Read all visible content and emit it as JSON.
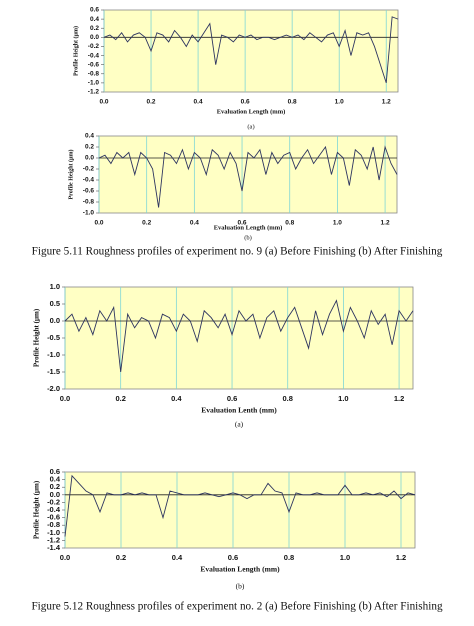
{
  "chart_data": [
    {
      "type": "line",
      "y_label": "Profile Height (µm)",
      "x_label": "Evaluation Length (mm)",
      "sublabel": "(a)",
      "grid": "x",
      "background": "#ffffc4",
      "color": "#2e3560",
      "xlim": [
        0,
        1.25
      ],
      "xticks": [
        {
          "value": 0,
          "label": "0.0"
        },
        0.2,
        0.4,
        0.6,
        0.8,
        {
          "value": 1,
          "label": "1.0"
        },
        1.2
      ],
      "ylim": [
        -1.2,
        0.6
      ],
      "yticks": [
        0.6,
        0.4,
        0.2,
        {
          "value": 0,
          "label": "0.0"
        },
        -0.2,
        -0.4,
        -0.6,
        -0.8,
        {
          "value": -1,
          "label": "-1.0"
        },
        -1.2
      ],
      "x": [
        0,
        0.025,
        0.05,
        0.075,
        0.1,
        0.125,
        0.15,
        0.175,
        0.2,
        0.225,
        0.25,
        0.275,
        0.3,
        0.325,
        0.35,
        0.375,
        0.4,
        0.425,
        0.45,
        0.475,
        0.5,
        0.525,
        0.55,
        0.575,
        0.6,
        0.625,
        0.65,
        0.675,
        0.7,
        0.725,
        0.75,
        0.775,
        0.8,
        0.825,
        0.85,
        0.875,
        0.9,
        0.925,
        0.95,
        0.975,
        1,
        1.025,
        1.05,
        1.075,
        1.1,
        1.125,
        1.15,
        1.175,
        1.2,
        1.225,
        1.25
      ],
      "values": [
        0.0,
        0.05,
        -0.05,
        0.1,
        -0.1,
        0.05,
        0.1,
        0.0,
        -0.3,
        0.1,
        0.05,
        -0.1,
        0.15,
        0.0,
        -0.2,
        0.05,
        -0.1,
        0.1,
        0.3,
        -0.6,
        0.05,
        0.0,
        -0.1,
        0.05,
        0.0,
        0.05,
        -0.05,
        0.0,
        0.0,
        -0.05,
        0.0,
        0.05,
        0.0,
        0.05,
        -0.05,
        0.1,
        0.0,
        -0.1,
        0.05,
        0.1,
        -0.2,
        0.15,
        -0.4,
        0.1,
        0.05,
        0.1,
        -0.2,
        -0.6,
        -1.0,
        0.45,
        0.4
      ]
    },
    {
      "type": "line",
      "y_label": "Profile Height (µm)",
      "x_label": "Evaluation Length (mm)",
      "sublabel": "(b)",
      "grid": "x",
      "background": "#ffffc4",
      "color": "#2e3560",
      "xlim": [
        0,
        1.25
      ],
      "xticks": [
        {
          "value": 0,
          "label": "0.0"
        },
        0.2,
        0.4,
        0.6,
        0.8,
        {
          "value": 1,
          "label": "1.0"
        },
        1.2
      ],
      "ylim": [
        -1.0,
        0.4
      ],
      "yticks": [
        0.4,
        0.2,
        {
          "value": 0,
          "label": "0.0"
        },
        -0.2,
        -0.4,
        -0.6,
        -0.8,
        {
          "value": -1,
          "label": "-1.0"
        }
      ],
      "x": [
        0,
        0.025,
        0.05,
        0.075,
        0.1,
        0.125,
        0.15,
        0.175,
        0.2,
        0.225,
        0.25,
        0.275,
        0.3,
        0.325,
        0.35,
        0.375,
        0.4,
        0.425,
        0.45,
        0.475,
        0.5,
        0.525,
        0.55,
        0.575,
        0.6,
        0.625,
        0.65,
        0.675,
        0.7,
        0.725,
        0.75,
        0.775,
        0.8,
        0.825,
        0.85,
        0.875,
        0.9,
        0.925,
        0.95,
        0.975,
        1,
        1.025,
        1.05,
        1.075,
        1.1,
        1.125,
        1.15,
        1.175,
        1.2,
        1.225,
        1.25
      ],
      "values": [
        0.0,
        0.05,
        -0.1,
        0.1,
        0.0,
        0.1,
        -0.3,
        0.1,
        0.0,
        -0.2,
        -0.9,
        0.1,
        0.05,
        -0.1,
        0.15,
        -0.2,
        0.1,
        0.0,
        -0.3,
        0.15,
        0.05,
        -0.2,
        0.1,
        -0.1,
        -0.6,
        0.1,
        0.0,
        0.15,
        -0.3,
        0.1,
        -0.1,
        0.05,
        0.1,
        -0.2,
        0.0,
        0.15,
        -0.1,
        0.05,
        0.2,
        -0.3,
        0.1,
        0.0,
        -0.5,
        0.15,
        0.05,
        -0.2,
        0.2,
        -0.4,
        0.2,
        -0.1,
        -0.3
      ]
    },
    {
      "type": "line",
      "y_label": "Profile Height (µm)",
      "x_label": "Evaluation Lenth (mm)",
      "sublabel": "(a)",
      "grid": "x",
      "background": "#ffffc4",
      "color": "#2e3560",
      "xlim": [
        0,
        1.25
      ],
      "xticks": [
        {
          "value": 0,
          "label": "0.0"
        },
        0.2,
        0.4,
        0.6,
        0.8,
        {
          "value": 1,
          "label": "1.0"
        },
        1.2
      ],
      "ylim": [
        -2.0,
        1.0
      ],
      "yticks": [
        {
          "value": 1,
          "label": "1.0"
        },
        0.5,
        {
          "value": 0,
          "label": "0.0"
        },
        -0.5,
        {
          "value": -1,
          "label": "-1.0"
        },
        -1.5,
        {
          "value": -2,
          "label": "-2.0"
        }
      ],
      "x": [
        0,
        0.025,
        0.05,
        0.075,
        0.1,
        0.125,
        0.15,
        0.175,
        0.2,
        0.225,
        0.25,
        0.275,
        0.3,
        0.325,
        0.35,
        0.375,
        0.4,
        0.425,
        0.45,
        0.475,
        0.5,
        0.525,
        0.55,
        0.575,
        0.6,
        0.625,
        0.65,
        0.675,
        0.7,
        0.725,
        0.75,
        0.775,
        0.8,
        0.825,
        0.85,
        0.875,
        0.9,
        0.925,
        0.95,
        0.975,
        1,
        1.025,
        1.05,
        1.075,
        1.1,
        1.125,
        1.15,
        1.175,
        1.2,
        1.225,
        1.25
      ],
      "values": [
        0.0,
        0.2,
        -0.3,
        0.1,
        -0.4,
        0.3,
        0.0,
        0.4,
        -1.5,
        0.2,
        -0.2,
        0.1,
        0.0,
        -0.5,
        0.2,
        0.1,
        -0.3,
        0.2,
        0.0,
        -0.6,
        0.3,
        0.1,
        -0.2,
        0.2,
        -0.4,
        0.3,
        0.0,
        0.2,
        -0.5,
        0.1,
        0.3,
        -0.3,
        0.1,
        0.4,
        -0.2,
        -0.8,
        0.3,
        -0.4,
        0.2,
        0.6,
        -0.3,
        0.4,
        0.0,
        -0.5,
        0.3,
        -0.1,
        0.2,
        -0.7,
        0.3,
        0.0,
        0.3
      ]
    },
    {
      "type": "line",
      "y_label": "Profile Height (µm)",
      "x_label": "Evaluation Length (mm)",
      "sublabel": "(b)",
      "grid": "x",
      "background": "#ffffc4",
      "color": "#2e3560",
      "xlim": [
        0,
        1.25
      ],
      "xticks": [
        {
          "value": 0,
          "label": "0.0"
        },
        0.2,
        0.4,
        0.6,
        0.8,
        {
          "value": 1,
          "label": "1.0"
        },
        1.2
      ],
      "ylim": [
        -1.4,
        0.6
      ],
      "yticks": [
        0.6,
        0.4,
        0.2,
        {
          "value": 0,
          "label": "0.0"
        },
        -0.2,
        -0.4,
        -0.6,
        -0.8,
        {
          "value": -1,
          "label": "-1.0"
        },
        -1.2,
        -1.4
      ],
      "x": [
        0,
        0.025,
        0.05,
        0.075,
        0.1,
        0.125,
        0.15,
        0.175,
        0.2,
        0.225,
        0.25,
        0.275,
        0.3,
        0.325,
        0.35,
        0.375,
        0.4,
        0.425,
        0.45,
        0.475,
        0.5,
        0.525,
        0.55,
        0.575,
        0.6,
        0.625,
        0.65,
        0.675,
        0.7,
        0.725,
        0.75,
        0.775,
        0.8,
        0.825,
        0.85,
        0.875,
        0.9,
        0.925,
        0.95,
        0.975,
        1,
        1.025,
        1.05,
        1.075,
        1.1,
        1.125,
        1.15,
        1.175,
        1.2,
        1.225,
        1.25
      ],
      "values": [
        -1.1,
        0.5,
        0.3,
        0.1,
        0.0,
        -0.45,
        0.05,
        0.0,
        0.0,
        0.05,
        0.0,
        0.05,
        0.0,
        0.0,
        -0.6,
        0.1,
        0.05,
        0.0,
        0.0,
        0.0,
        0.05,
        0.0,
        -0.05,
        0.0,
        0.05,
        0.0,
        -0.1,
        0.0,
        0.0,
        0.3,
        0.1,
        0.05,
        -0.45,
        0.05,
        0.0,
        0.0,
        0.05,
        0.0,
        0.0,
        0.0,
        0.25,
        0.0,
        0.0,
        0.05,
        0.0,
        0.05,
        -0.05,
        0.1,
        -0.1,
        0.05,
        0.0
      ]
    }
  ],
  "captions": [
    "Figure 5.11 Roughness profiles of experiment no. 9 (a) Before Finishing (b) After Finishing",
    "Figure 5.12 Roughness profiles of experiment no. 2 (a) Before Finishing (b) After Finishing"
  ]
}
